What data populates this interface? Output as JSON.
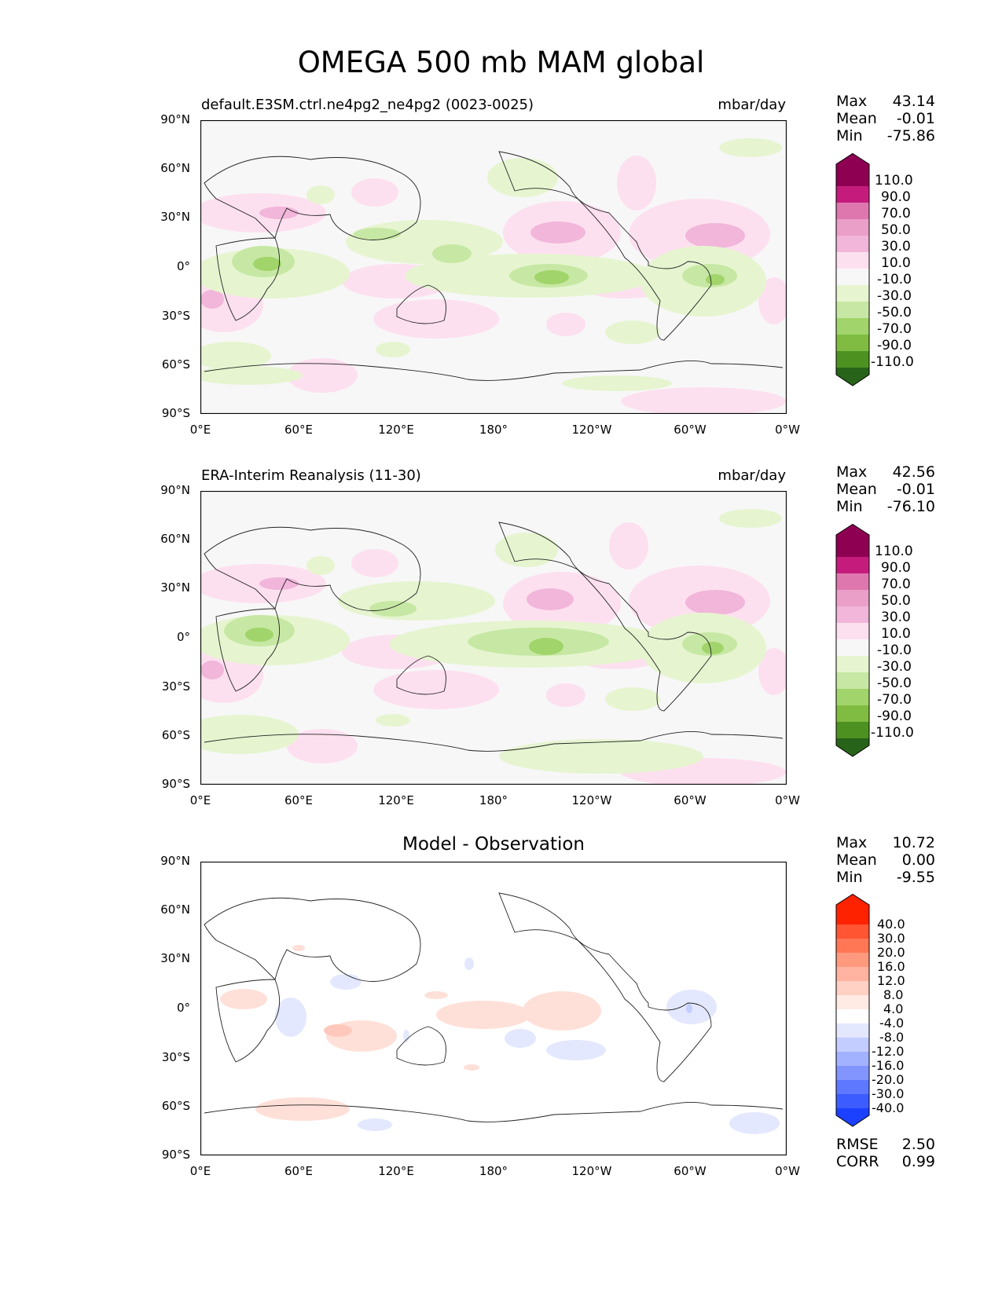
{
  "title": "OMEGA 500 mb MAM global",
  "panels": [
    {
      "title_left": "default.E3SM.ctrl.ne4pg2_ne4pg2 (0023-0025)",
      "title_right": "mbar/day",
      "stats": {
        "Max": "43.14",
        "Mean": "-0.01",
        "Min": "-75.86"
      }
    },
    {
      "title_left": "ERA-Interim Reanalysis (11-30)",
      "title_right": "mbar/day",
      "stats": {
        "Max": "42.56",
        "Mean": "-0.01",
        "Min": "-76.10"
      }
    },
    {
      "title_center": "Model - Observation",
      "stats": {
        "Max": "10.72",
        "Mean": "0.00",
        "Min": "-9.55"
      },
      "metrics": {
        "RMSE": "2.50",
        "CORR": "0.99"
      }
    }
  ],
  "axes": {
    "y_ticks": [
      "90°N",
      "60°N",
      "30°N",
      "0°",
      "30°S",
      "60°S",
      "90°S"
    ],
    "x_ticks": [
      "0°E",
      "60°E",
      "120°E",
      "180°",
      "120°W",
      "60°W",
      "0°W"
    ]
  },
  "colorbar_main": {
    "labels": [
      "110.0",
      "90.0",
      "70.0",
      "50.0",
      "30.0",
      "10.0",
      "-10.0",
      "-30.0",
      "-50.0",
      "-70.0",
      "-90.0",
      "-110.0"
    ],
    "colors": [
      "#8e0152",
      "#c51b7d",
      "#de77ae",
      "#ea9fc9",
      "#f1b6da",
      "#fde0ef",
      "#f7f7f7",
      "#e6f5d0",
      "#c7e8a4",
      "#a1d46a",
      "#7fbc41",
      "#4d9221",
      "#276419"
    ]
  },
  "colorbar_diff": {
    "labels": [
      "40.0",
      "30.0",
      "20.0",
      "16.0",
      "12.0",
      "8.0",
      "4.0",
      "-4.0",
      "-8.0",
      "-12.0",
      "-16.0",
      "-20.0",
      "-30.0",
      "-40.0"
    ],
    "colors": [
      "#ff2200",
      "#ff5533",
      "#ff7755",
      "#ff9a7f",
      "#ffb3a0",
      "#ffd0c4",
      "#ffeae4",
      "#ffffff",
      "#e4e8ff",
      "#c4cdff",
      "#a3b2ff",
      "#8295ff",
      "#5e78ff",
      "#3d5cff",
      "#1c40ff"
    ]
  },
  "chart_data": [
    {
      "type": "heatmap",
      "title": "default.E3SM.ctrl.ne4pg2_ne4pg2 (0023-0025)",
      "units": "mbar/day",
      "xlim": [
        0,
        360
      ],
      "ylim": [
        -90,
        90
      ],
      "stats": {
        "max": 43.14,
        "mean": -0.01,
        "min": -75.86
      },
      "levels": [
        -110,
        -90,
        -70,
        -50,
        -30,
        -10,
        10,
        30,
        50,
        70,
        90,
        110
      ]
    },
    {
      "type": "heatmap",
      "title": "ERA-Interim Reanalysis (11-30)",
      "units": "mbar/day",
      "xlim": [
        0,
        360
      ],
      "ylim": [
        -90,
        90
      ],
      "stats": {
        "max": 42.56,
        "mean": -0.01,
        "min": -76.1
      },
      "levels": [
        -110,
        -90,
        -70,
        -50,
        -30,
        -10,
        10,
        30,
        50,
        70,
        90,
        110
      ]
    },
    {
      "type": "heatmap",
      "title": "Model - Observation",
      "xlim": [
        0,
        360
      ],
      "ylim": [
        -90,
        90
      ],
      "stats": {
        "max": 10.72,
        "mean": 0.0,
        "min": -9.55,
        "rmse": 2.5,
        "corr": 0.99
      },
      "levels": [
        -40,
        -30,
        -20,
        -16,
        -12,
        -8,
        -4,
        4,
        8,
        12,
        16,
        20,
        30,
        40
      ]
    }
  ]
}
